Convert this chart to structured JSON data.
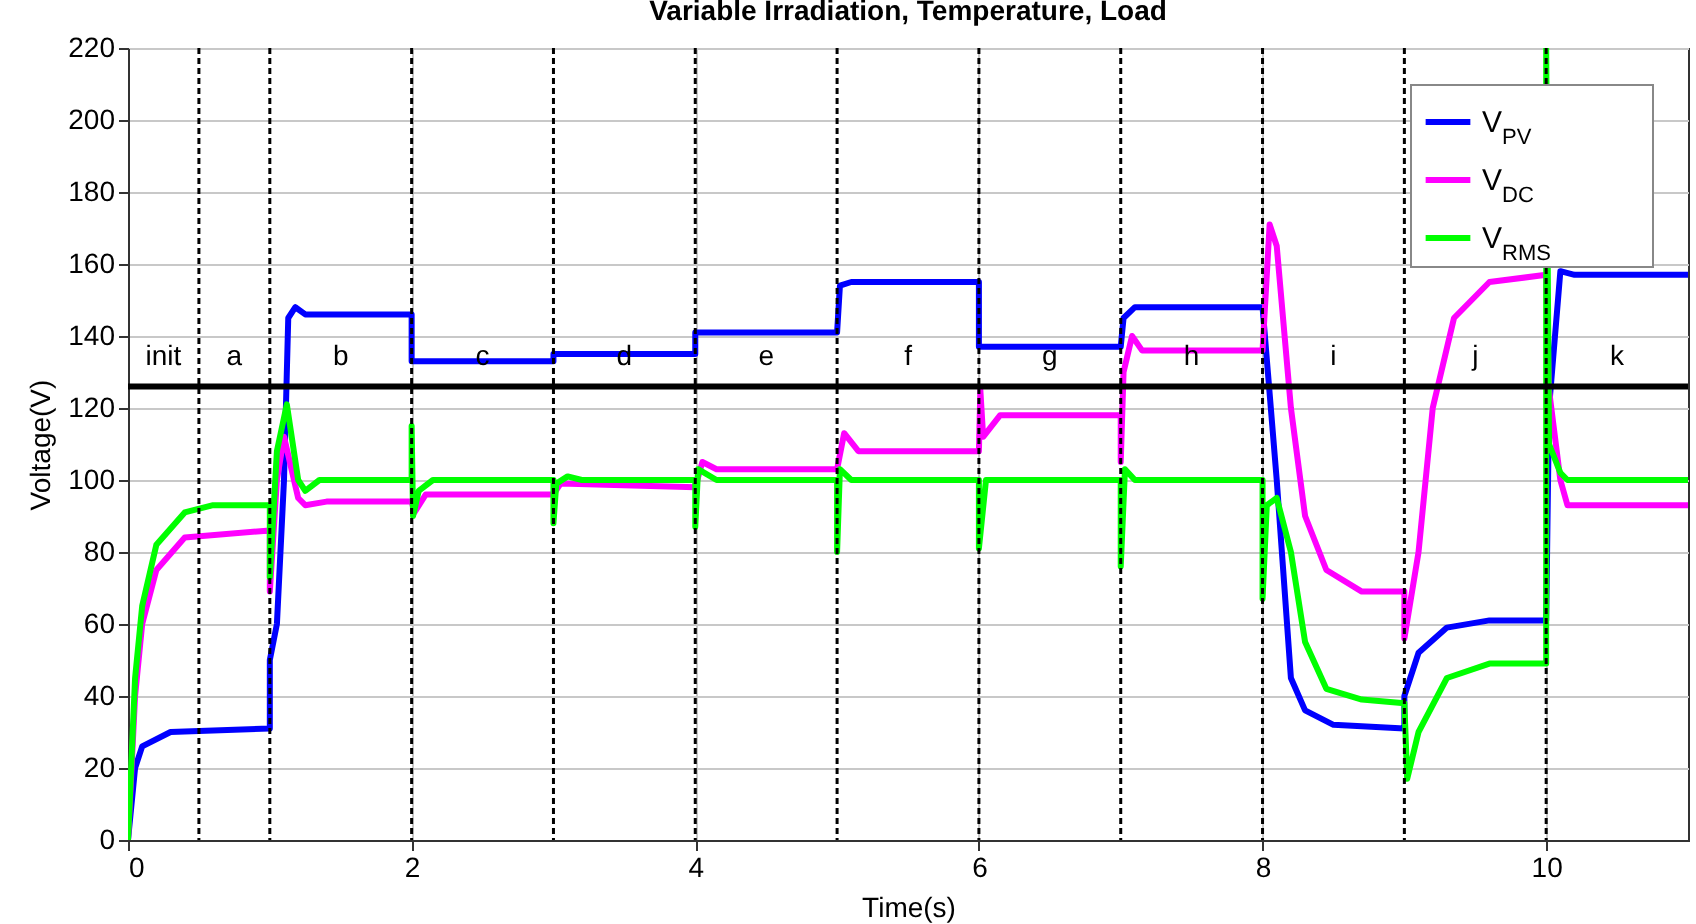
{
  "chart_data": {
    "type": "line",
    "title": "Variable Irradiation, Temperature, Load",
    "xlabel": "Time(s)",
    "ylabel": "Voltage(V)",
    "xlim": [
      0,
      11
    ],
    "xticks": [
      0,
      2,
      4,
      6,
      8,
      10
    ],
    "ylim": [
      0,
      220
    ],
    "yticks": [
      0,
      20,
      40,
      60,
      80,
      100,
      120,
      140,
      160,
      180,
      200,
      220
    ],
    "grid": true,
    "legend": "top right",
    "series": [
      {
        "name": "V$_{PV}$",
        "color": "#0000ff",
        "x": [
          0,
          0.05,
          0.1,
          0.3,
          1.0,
          1.0,
          1.05,
          1.1,
          1.13,
          1.18,
          1.25,
          2.0,
          2.0,
          3.0,
          3.0,
          4.0,
          4.0,
          5.0,
          5.02,
          5.1,
          6.0,
          6.0,
          7.0,
          7.02,
          7.1,
          8.0,
          8.1,
          8.2,
          8.3,
          8.5,
          9.0,
          9.0,
          9.1,
          9.3,
          9.6,
          10.0,
          10.02,
          10.1,
          10.2,
          11
        ],
        "values": [
          0,
          20,
          26,
          30,
          31,
          50,
          60,
          100,
          145,
          148,
          146,
          146,
          133,
          133,
          135,
          135,
          141,
          141,
          154,
          155,
          155,
          137,
          137,
          145,
          148,
          148,
          100,
          45,
          36,
          32,
          31,
          40,
          52,
          59,
          61,
          61,
          120,
          158,
          157,
          157
        ]
      },
      {
        "name": "V$_{DC}$",
        "color": "#ff00ff",
        "x": [
          0,
          0.05,
          0.1,
          0.2,
          0.4,
          1.0,
          1.0,
          1.05,
          1.1,
          1.2,
          1.25,
          1.4,
          2.0,
          2.02,
          2.1,
          3.0,
          3.05,
          4.0,
          4.05,
          4.15,
          5.0,
          5.05,
          5.15,
          6.0,
          6.01,
          6.03,
          6.15,
          7.0,
          7.0,
          7.02,
          7.08,
          7.15,
          8.0,
          8.05,
          8.1,
          8.2,
          8.3,
          8.45,
          8.7,
          9.0,
          9.0,
          9.1,
          9.2,
          9.35,
          9.6,
          10.0,
          10.02,
          10.1,
          10.15,
          11
        ],
        "values": [
          0,
          40,
          60,
          75,
          84,
          86,
          69,
          100,
          112,
          95,
          93,
          94,
          94,
          91,
          96,
          96,
          99,
          98,
          105,
          103,
          103,
          113,
          108,
          108,
          125,
          112,
          118,
          118,
          105,
          130,
          140,
          136,
          136,
          171,
          165,
          120,
          90,
          75,
          69,
          69,
          56,
          80,
          120,
          145,
          155,
          157,
          125,
          100,
          93,
          93
        ]
      },
      {
        "name": "V$_{RMS}$",
        "color": "#00ff00",
        "x": [
          0,
          0.05,
          0.1,
          0.2,
          0.4,
          0.6,
          1.0,
          1.0,
          1.05,
          1.12,
          1.2,
          1.25,
          1.35,
          2.0,
          2.0,
          2.01,
          2.05,
          2.15,
          3.0,
          3.0,
          3.02,
          3.1,
          3.2,
          4.0,
          4.0,
          4.02,
          4.15,
          5.0,
          5.0,
          5.02,
          5.1,
          6.0,
          6.0,
          6.05,
          7.0,
          7.0,
          7.03,
          7.1,
          8.0,
          8.0,
          8.03,
          8.1,
          8.2,
          8.3,
          8.45,
          8.7,
          9.0,
          9.02,
          9.1,
          9.3,
          9.6,
          10.0,
          10.0,
          10.02,
          10.1,
          10.15,
          11
        ],
        "values": [
          0,
          45,
          65,
          82,
          91,
          93,
          93,
          73,
          108,
          121,
          100,
          97,
          100,
          100,
          115,
          90,
          97,
          100,
          100,
          88,
          99,
          101,
          100,
          100,
          87,
          103,
          100,
          100,
          80,
          103,
          100,
          100,
          81,
          100,
          100,
          76,
          103,
          100,
          100,
          67,
          93,
          95,
          80,
          55,
          42,
          39,
          38,
          17,
          30,
          45,
          49,
          49,
          220,
          110,
          102,
          100,
          100
        ]
      }
    ],
    "ref_lines": [
      {
        "axis": "y",
        "value": 126,
        "color": "#000000"
      },
      {
        "axis": "x",
        "value": 0.5,
        "color": "#000000",
        "line_style": "dotted"
      },
      {
        "axis": "x",
        "value": 1,
        "color": "#000000",
        "line_style": "dotted"
      },
      {
        "axis": "x",
        "value": 2,
        "color": "#000000",
        "line_style": "dotted"
      },
      {
        "axis": "x",
        "value": 3,
        "color": "#000000",
        "line_style": "dotted"
      },
      {
        "axis": "x",
        "value": 4,
        "color": "#000000",
        "line_style": "dotted"
      },
      {
        "axis": "x",
        "value": 5,
        "color": "#000000",
        "line_style": "dotted"
      },
      {
        "axis": "x",
        "value": 6,
        "color": "#000000",
        "line_style": "dotted"
      },
      {
        "axis": "x",
        "value": 7,
        "color": "#000000",
        "line_style": "dotted"
      },
      {
        "axis": "x",
        "value": 8,
        "color": "#000000",
        "line_style": "dotted"
      },
      {
        "axis": "x",
        "value": 9,
        "color": "#000000",
        "line_style": "dotted"
      },
      {
        "axis": "x",
        "value": 10,
        "color": "#000000",
        "line_style": "dotted"
      }
    ],
    "annotations": [
      "init",
      "a",
      "b",
      "c",
      "d",
      "e",
      "f",
      "g",
      "h",
      "i",
      "j",
      "k"
    ]
  }
}
